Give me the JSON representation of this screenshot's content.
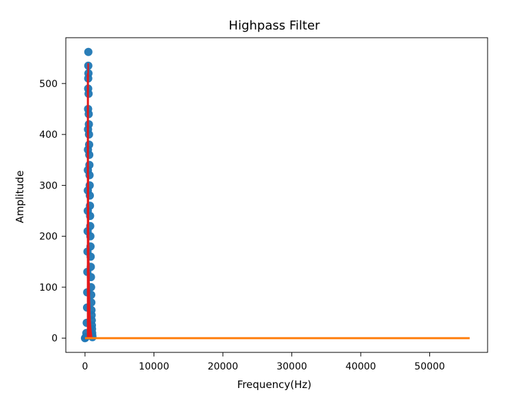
{
  "chart_data": {
    "type": "scatter",
    "title": "Highpass Filter",
    "xlabel": "Frequency(Hz)",
    "ylabel": "Amplitude",
    "xlim": [
      -2780,
      58400
    ],
    "ylim": [
      -28,
      590
    ],
    "xticks": [
      0,
      10000,
      20000,
      30000,
      40000,
      50000
    ],
    "xtick_labels": [
      "0",
      "10000",
      "20000",
      "30000",
      "40000",
      "50000"
    ],
    "yticks": [
      0,
      100,
      200,
      300,
      400,
      500
    ],
    "ytick_labels": [
      "0",
      "100",
      "200",
      "300",
      "400",
      "500"
    ],
    "grid": false,
    "legend": "none",
    "series": [
      {
        "kind": "scatter",
        "color": "#1f77b4",
        "points": [
          [
            0,
            0
          ],
          [
            120,
            2
          ],
          [
            200,
            10
          ],
          [
            250,
            30
          ],
          [
            300,
            60
          ],
          [
            320,
            90
          ],
          [
            340,
            130
          ],
          [
            360,
            170
          ],
          [
            380,
            210
          ],
          [
            400,
            250
          ],
          [
            410,
            290
          ],
          [
            420,
            330
          ],
          [
            430,
            370
          ],
          [
            440,
            410
          ],
          [
            450,
            450
          ],
          [
            460,
            490
          ],
          [
            470,
            510
          ],
          [
            480,
            535
          ],
          [
            485,
            562
          ],
          [
            500,
            520
          ],
          [
            520,
            480
          ],
          [
            540,
            440
          ],
          [
            560,
            420
          ],
          [
            580,
            400
          ],
          [
            600,
            380
          ],
          [
            620,
            360
          ],
          [
            640,
            340
          ],
          [
            660,
            320
          ],
          [
            680,
            300
          ],
          [
            700,
            280
          ],
          [
            720,
            260
          ],
          [
            740,
            240
          ],
          [
            760,
            220
          ],
          [
            780,
            200
          ],
          [
            800,
            180
          ],
          [
            820,
            160
          ],
          [
            840,
            140
          ],
          [
            860,
            120
          ],
          [
            880,
            100
          ],
          [
            900,
            85
          ],
          [
            920,
            70
          ],
          [
            940,
            55
          ],
          [
            960,
            45
          ],
          [
            980,
            35
          ],
          [
            1000,
            25
          ],
          [
            1020,
            18
          ],
          [
            1040,
            10
          ],
          [
            1060,
            5
          ],
          [
            1080,
            2
          ]
        ]
      },
      {
        "kind": "stem",
        "color": "#e31a1c",
        "points": [
          [
            380,
            520
          ],
          [
            420,
            470
          ],
          [
            440,
            380
          ],
          [
            460,
            540
          ],
          [
            480,
            320
          ],
          [
            500,
            260
          ],
          [
            520,
            210
          ],
          [
            540,
            180
          ],
          [
            560,
            150
          ],
          [
            580,
            130
          ],
          [
            600,
            110
          ],
          [
            620,
            95
          ],
          [
            640,
            80
          ],
          [
            660,
            70
          ],
          [
            680,
            60
          ],
          [
            700,
            50
          ],
          [
            720,
            45
          ],
          [
            740,
            38
          ],
          [
            760,
            32
          ],
          [
            780,
            28
          ],
          [
            800,
            24
          ],
          [
            820,
            20
          ],
          [
            840,
            18
          ],
          [
            860,
            15
          ],
          [
            880,
            12
          ],
          [
            900,
            10
          ],
          [
            920,
            8
          ],
          [
            940,
            6
          ],
          [
            960,
            5
          ]
        ]
      },
      {
        "kind": "line",
        "color": "#ff7f0e",
        "points": [
          [
            0,
            0
          ],
          [
            5000,
            0
          ],
          [
            10000,
            0
          ],
          [
            15000,
            0
          ],
          [
            20000,
            0
          ],
          [
            25000,
            0
          ],
          [
            30000,
            0
          ],
          [
            35000,
            0
          ],
          [
            40000,
            0
          ],
          [
            45000,
            0
          ],
          [
            50000,
            0
          ],
          [
            55800,
            0
          ]
        ]
      }
    ]
  }
}
